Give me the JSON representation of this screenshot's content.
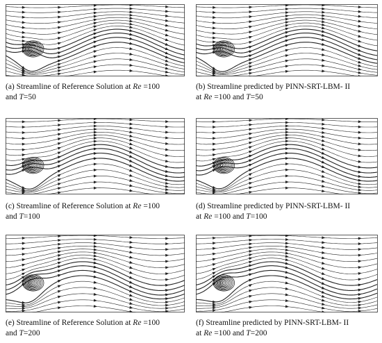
{
  "panels": [
    {
      "caption": [
        [
          {
            "text": "(a) Streamline of Reference Solution at "
          },
          {
            "text": "Re",
            "italic": true
          },
          {
            "text": " =100"
          }
        ],
        [
          {
            "text": "and "
          },
          {
            "text": "T",
            "italic": true
          },
          {
            "text": "=50"
          }
        ]
      ]
    },
    {
      "caption": [
        [
          {
            "text": "(b) Streamline predicted  by PINN-SRT-LBM- II"
          }
        ],
        [
          {
            "text": "at "
          },
          {
            "text": "Re",
            "italic": true
          },
          {
            "text": " =100 and "
          },
          {
            "text": "T",
            "italic": true
          },
          {
            "text": "=50"
          }
        ]
      ]
    },
    {
      "caption": [
        [
          {
            "text": "(c) Streamline of Reference Solution at "
          },
          {
            "text": "Re",
            "italic": true
          },
          {
            "text": " =100"
          }
        ],
        [
          {
            "text": "and "
          },
          {
            "text": "T",
            "italic": true
          },
          {
            "text": "=100"
          }
        ]
      ]
    },
    {
      "caption": [
        [
          {
            "text": "(d) Streamline predicted  by PINN-SRT-LBM- II"
          }
        ],
        [
          {
            "text": "at "
          },
          {
            "text": "Re",
            "italic": true
          },
          {
            "text": " =100 and "
          },
          {
            "text": "T",
            "italic": true
          },
          {
            "text": "=100"
          }
        ]
      ]
    },
    {
      "caption": [
        [
          {
            "text": "(e) Streamline of Reference Solution at "
          },
          {
            "text": "Re",
            "italic": true
          },
          {
            "text": " =100"
          }
        ],
        [
          {
            "text": "and "
          },
          {
            "text": "T",
            "italic": true
          },
          {
            "text": "=200"
          }
        ]
      ]
    },
    {
      "caption": [
        [
          {
            "text": "(f) Streamline predicted  by PINN-SRT-LBM- II"
          }
        ],
        [
          {
            "text": "at "
          },
          {
            "text": "Re",
            "italic": true
          },
          {
            "text": " =100 and "
          },
          {
            "text": "T",
            "italic": true
          },
          {
            "text": "=200"
          }
        ]
      ]
    }
  ]
}
